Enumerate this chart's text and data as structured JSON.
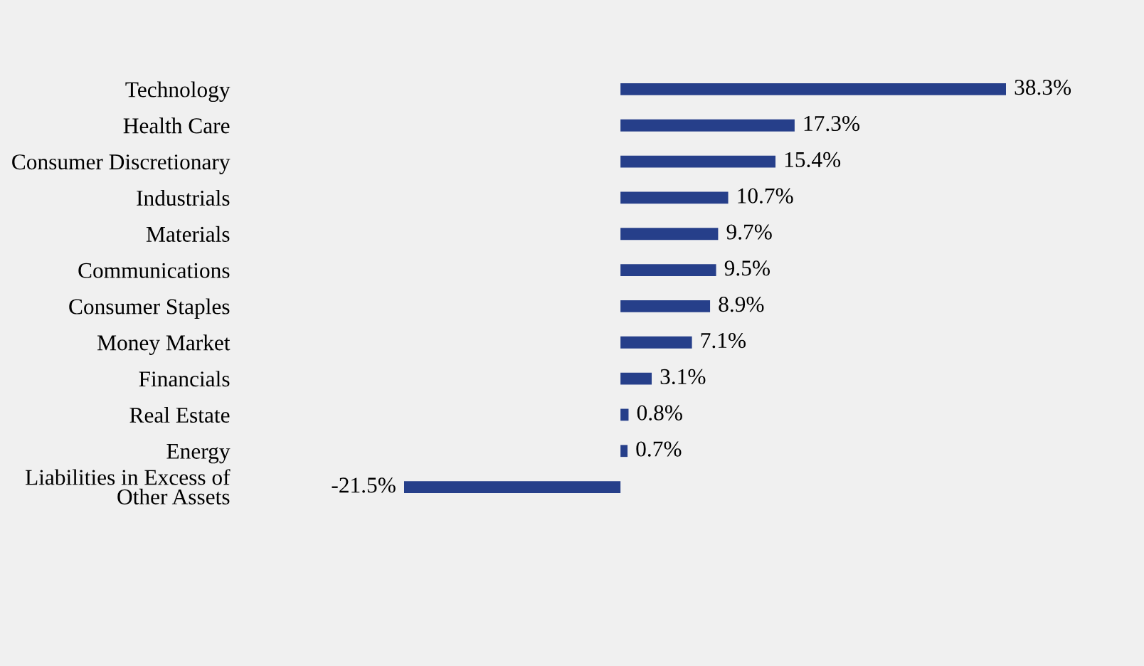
{
  "chart_data": {
    "type": "bar",
    "orientation": "horizontal",
    "categories": [
      "Technology",
      "Health Care",
      "Consumer Discretionary",
      "Industrials",
      "Materials",
      "Communications",
      "Consumer Staples",
      "Money Market",
      "Financials",
      "Real Estate",
      "Energy",
      "Liabilities in Excess of\nOther Assets"
    ],
    "values": [
      38.3,
      17.3,
      15.4,
      10.7,
      9.7,
      9.5,
      8.9,
      7.1,
      3.1,
      0.8,
      0.7,
      -21.5
    ],
    "value_labels": [
      "38.3%",
      "17.3%",
      "15.4%",
      "10.7%",
      "9.7%",
      "9.5%",
      "8.9%",
      "7.1%",
      "3.1%",
      "0.8%",
      "0.7%",
      "-21.5%"
    ],
    "color": "#263f8a",
    "grid": false,
    "legend": false,
    "tick_labels": "y"
  }
}
